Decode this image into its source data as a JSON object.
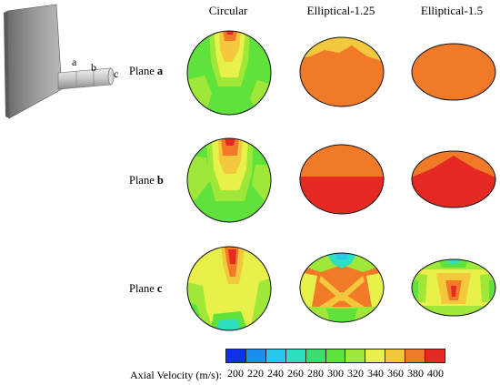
{
  "columns": [
    "Circular",
    "Elliptical-1.25",
    "Elliptical-1.5"
  ],
  "planes": [
    {
      "prefix": "Plane ",
      "letter": "a"
    },
    {
      "prefix": "Plane ",
      "letter": "b"
    },
    {
      "prefix": "Plane ",
      "letter": "c"
    }
  ],
  "nozzle_markers": [
    "a",
    "b",
    "c"
  ],
  "legend": {
    "title": "Axial Velocity (m/s):",
    "ticks": [
      "200",
      "220",
      "240",
      "260",
      "280",
      "300",
      "320",
      "340",
      "360",
      "380",
      "400"
    ],
    "colors": [
      "#1030e8",
      "#1d8ef0",
      "#25c8e8",
      "#2de0c0",
      "#3cdc70",
      "#5fe23c",
      "#9fe83a",
      "#e8f04a",
      "#f4c83c",
      "#f07a28",
      "#e42a22"
    ]
  },
  "colors": {
    "green": "#5fe23c",
    "lime": "#9fe83a",
    "yellow": "#e8f04a",
    "orange": "#f07a28",
    "light_orange": "#f4c83c",
    "red": "#e42a22",
    "cyan": "#2de0c0",
    "blue": "#25c8e8"
  }
}
